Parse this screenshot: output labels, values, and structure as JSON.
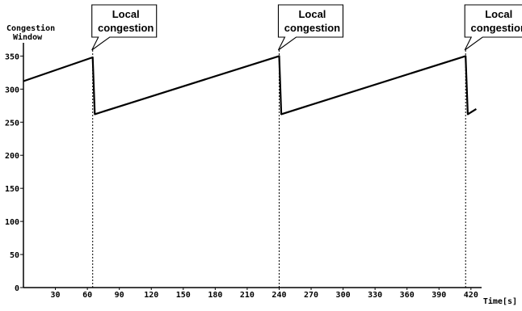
{
  "chart_data": {
    "type": "line",
    "title": "",
    "ylabel": "Congestion Window",
    "ylabel_lines": [
      "Congestion",
      "Window"
    ],
    "xlabel": "Time[s]",
    "xlim": [
      0,
      430
    ],
    "ylim": [
      0,
      370
    ],
    "x_ticks": [
      30,
      60,
      90,
      120,
      150,
      180,
      210,
      240,
      270,
      300,
      330,
      360,
      390,
      420
    ],
    "x_tick_labels": [
      "30",
      "60",
      "90",
      "120",
      "150",
      "180",
      "210",
      "240",
      "270",
      "300",
      "330",
      "360",
      "390",
      "420"
    ],
    "y_ticks": [
      0,
      50,
      100,
      150,
      200,
      250,
      300,
      350
    ],
    "y_tick_labels": [
      "0",
      "50",
      "100",
      "150",
      "200",
      "250",
      "300",
      "350"
    ],
    "grid": false,
    "series": [
      {
        "x": [
          0,
          65,
          67,
          240,
          242,
          415,
          417,
          425
        ],
        "y": [
          312,
          348,
          262,
          350,
          262,
          350,
          262,
          270
        ]
      }
    ],
    "events": [
      {
        "x": 65,
        "label_lines": [
          "Local",
          "congestion"
        ]
      },
      {
        "x": 240,
        "label_lines": [
          "Local",
          "congestion"
        ]
      },
      {
        "x": 415,
        "label_lines": [
          "Local",
          "congestion"
        ]
      }
    ]
  }
}
